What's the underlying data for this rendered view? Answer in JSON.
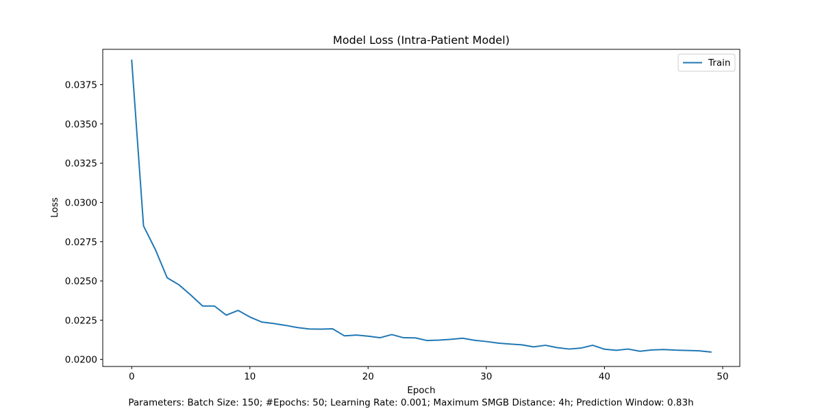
{
  "chart_data": {
    "type": "line",
    "title": "Model Loss (Intra-Patient Model)",
    "xlabel": "Epoch",
    "ylabel": "Loss",
    "xlim": [
      -2.45,
      51.45
    ],
    "ylim": [
      0.01955,
      0.03975
    ],
    "xticks": [
      0,
      10,
      20,
      30,
      40,
      50
    ],
    "xtick_labels": [
      "0",
      "10",
      "20",
      "30",
      "40",
      "50"
    ],
    "yticks": [
      0.02,
      0.0225,
      0.025,
      0.0275,
      0.03,
      0.0325,
      0.035,
      0.0375
    ],
    "ytick_labels": [
      "0.0200",
      "0.0225",
      "0.0250",
      "0.0275",
      "0.0300",
      "0.0325",
      "0.0350",
      "0.0375"
    ],
    "grid": false,
    "legend_position": "top-right",
    "series": [
      {
        "name": "Train",
        "color": "#1f77b4",
        "x": [
          0,
          1,
          2,
          3,
          4,
          5,
          6,
          7,
          8,
          9,
          10,
          11,
          12,
          13,
          14,
          15,
          16,
          17,
          18,
          19,
          20,
          21,
          22,
          23,
          24,
          25,
          26,
          27,
          28,
          29,
          30,
          31,
          32,
          33,
          34,
          35,
          36,
          37,
          38,
          39,
          40,
          41,
          42,
          43,
          44,
          45,
          46,
          47,
          48,
          49
        ],
        "values": [
          0.03905,
          0.0285,
          0.027,
          0.0252,
          0.02475,
          0.0241,
          0.0234,
          0.0234,
          0.02282,
          0.02312,
          0.0227,
          0.02238,
          0.02229,
          0.02217,
          0.02203,
          0.02194,
          0.02193,
          0.02195,
          0.0215,
          0.02155,
          0.02148,
          0.02138,
          0.02158,
          0.02138,
          0.02137,
          0.0212,
          0.02123,
          0.02128,
          0.02135,
          0.02122,
          0.02114,
          0.02104,
          0.02098,
          0.02093,
          0.0208,
          0.0209,
          0.02075,
          0.02066,
          0.02072,
          0.0209,
          0.02065,
          0.02058,
          0.02066,
          0.02052,
          0.0206,
          0.02063,
          0.02059,
          0.02057,
          0.02055,
          0.02047
        ]
      }
    ]
  },
  "footer": {
    "text": "Parameters: Batch Size: 150; #Epochs: 50; Learning Rate: 0.001; Maximum SMGB Distance: 4h; Prediction Window: 0.83h"
  }
}
